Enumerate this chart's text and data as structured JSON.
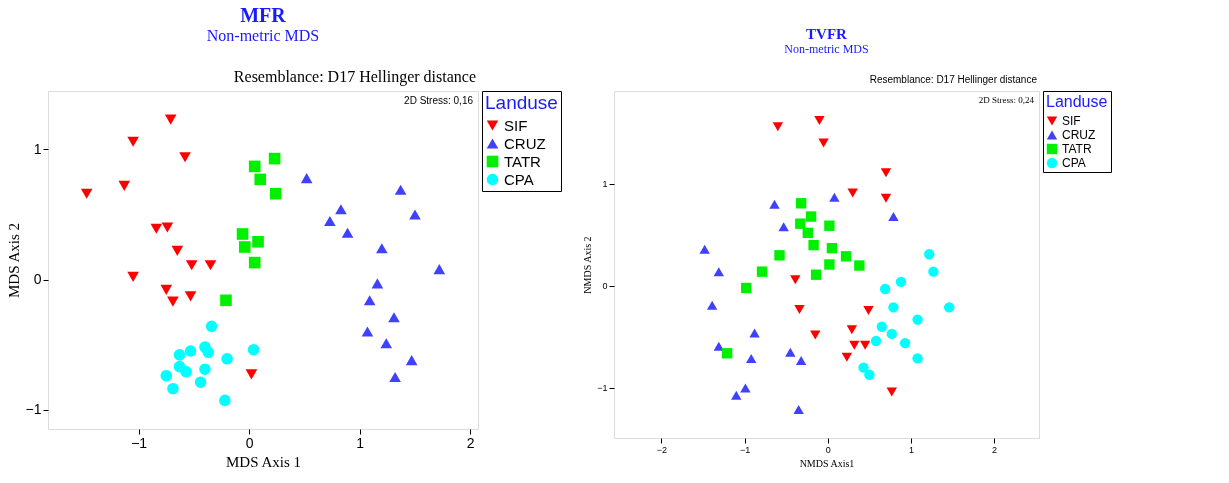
{
  "chart_data": [
    {
      "type": "scatter",
      "title": "MFR",
      "subtitle": "Non-metric MDS",
      "xlabel": "MDS Axis 1",
      "ylabel": "MDS Axis 2",
      "legend_title": "Landuse",
      "annotations": [
        "Resemblance: D17 Hellinger distance",
        "2D Stress: 0,16"
      ],
      "xlim": [
        -1.82,
        2.07
      ],
      "ylim": [
        -1.15,
        1.45
      ],
      "xticks": [
        -1,
        0,
        1,
        2
      ],
      "yticks": [
        -1,
        0,
        1
      ],
      "grid": false,
      "legend": "right",
      "series": [
        {
          "name": "SIF",
          "color": "#ff0000",
          "marker": "triangle-down",
          "x": [
            -0.71,
            -1.05,
            -0.58,
            -1.47,
            -1.13,
            -0.84,
            -0.74,
            -0.65,
            -0.52,
            -0.35,
            -1.05,
            -0.75,
            -0.69,
            -0.53,
            0.02
          ],
          "values": [
            1.23,
            1.06,
            0.94,
            0.66,
            0.72,
            0.39,
            0.4,
            0.22,
            0.11,
            0.11,
            0.02,
            -0.08,
            -0.17,
            -0.13,
            -0.73
          ]
        },
        {
          "name": "CRUZ",
          "color": "#4040ff",
          "marker": "triangle",
          "x": [
            0.52,
            0.73,
            0.83,
            0.89,
            1.37,
            1.5,
            1.2,
            1.72,
            1.16,
            1.09,
            1.31,
            1.07,
            1.24,
            1.47,
            1.32
          ],
          "values": [
            0.78,
            0.45,
            0.54,
            0.36,
            0.69,
            0.5,
            0.24,
            0.08,
            -0.03,
            -0.16,
            -0.29,
            -0.4,
            -0.49,
            -0.62,
            -0.75
          ]
        },
        {
          "name": "TATR",
          "color": "#00f000",
          "marker": "square",
          "x": [
            0.23,
            0.05,
            0.1,
            0.24,
            -0.06,
            -0.04,
            0.08,
            0.05,
            -0.21
          ],
          "values": [
            0.93,
            0.87,
            0.77,
            0.66,
            0.35,
            0.25,
            0.29,
            0.13,
            -0.16
          ]
        },
        {
          "name": "CPA",
          "color": "#00ffff",
          "marker": "circle",
          "x": [
            -0.34,
            -0.63,
            -0.53,
            -0.4,
            -0.37,
            -0.2,
            0.04,
            -0.63,
            -0.57,
            -0.4,
            -0.75,
            -0.69,
            -0.44,
            -0.22
          ],
          "values": [
            -0.36,
            -0.58,
            -0.55,
            -0.52,
            -0.56,
            -0.61,
            -0.54,
            -0.67,
            -0.71,
            -0.69,
            -0.74,
            -0.84,
            -0.79,
            -0.93
          ]
        }
      ]
    },
    {
      "type": "scatter",
      "title": "TVFR",
      "subtitle": "Non-metric MDS",
      "xlabel": "NMDS Axis1",
      "ylabel": "NMDS Axis 2",
      "legend_title": "Landuse",
      "annotations": [
        "Resemblance: D17 Hellinger distance",
        "2D Stress: 0,24"
      ],
      "xlim": [
        -2.57,
        2.54
      ],
      "ylim": [
        -1.49,
        1.91
      ],
      "xticks": [
        -2,
        -1,
        0,
        1,
        2
      ],
      "yticks": [
        -1,
        0,
        1
      ],
      "grid": false,
      "legend": "right",
      "series": [
        {
          "name": "SIF",
          "color": "#ff0000",
          "marker": "triangle-down",
          "x": [
            -0.6,
            -0.1,
            -0.05,
            0.7,
            0.3,
            0.7,
            -0.39,
            -0.34,
            0.49,
            -0.15,
            0.29,
            0.32,
            0.45,
            0.23,
            0.77
          ],
          "values": [
            1.56,
            1.62,
            1.4,
            1.11,
            0.91,
            0.86,
            0.06,
            -0.23,
            -0.24,
            -0.48,
            -0.43,
            -0.58,
            -0.58,
            -0.7,
            -1.04
          ]
        },
        {
          "name": "CRUZ",
          "color": "#4040ff",
          "marker": "triangle",
          "x": [
            -0.64,
            0.08,
            0.79,
            -0.53,
            -1.48,
            -1.31,
            -1.39,
            -0.88,
            -1.31,
            -0.92,
            -0.45,
            -0.32,
            -0.99,
            -1.1,
            -0.35
          ],
          "values": [
            0.8,
            0.87,
            0.68,
            0.58,
            0.36,
            0.14,
            -0.19,
            -0.46,
            -0.59,
            -0.71,
            -0.65,
            -0.73,
            -1.0,
            -1.07,
            -1.21
          ]
        },
        {
          "name": "TATR",
          "color": "#00f000",
          "marker": "square",
          "x": [
            -0.32,
            -0.2,
            -0.33,
            0.02,
            -0.24,
            -0.17,
            0.05,
            -0.58,
            0.22,
            0.02,
            0.38,
            -0.79,
            -0.14,
            -0.98,
            -1.21
          ],
          "values": [
            0.81,
            0.68,
            0.61,
            0.59,
            0.52,
            0.4,
            0.37,
            0.3,
            0.29,
            0.21,
            0.2,
            0.14,
            0.11,
            -0.02,
            -0.66
          ]
        },
        {
          "name": "CPA",
          "color": "#00ffff",
          "marker": "circle",
          "x": [
            1.22,
            1.27,
            0.88,
            0.69,
            0.79,
            1.46,
            1.08,
            0.65,
            0.77,
            0.58,
            0.93,
            1.08,
            0.43,
            0.5
          ],
          "values": [
            0.31,
            0.14,
            0.04,
            -0.03,
            -0.21,
            -0.21,
            -0.33,
            -0.4,
            -0.47,
            -0.54,
            -0.56,
            -0.71,
            -0.8,
            -0.87
          ]
        }
      ]
    }
  ]
}
